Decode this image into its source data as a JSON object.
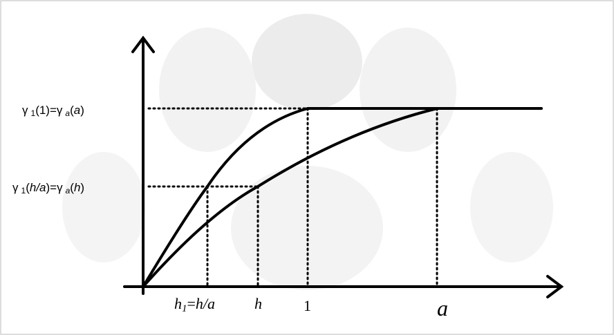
{
  "y_labels": [
    [
      "γ",
      "1",
      "(1)=γ",
      "a",
      "(",
      "a",
      ")"
    ],
    [
      "γ",
      "1",
      "(",
      "h/a",
      ")=γ",
      "a",
      "(",
      "h",
      ")"
    ]
  ],
  "x_labels": [
    [
      "h",
      "1",
      "=",
      "h/a"
    ],
    [
      "h"
    ],
    [
      "1"
    ],
    [
      "a"
    ]
  ]
}
